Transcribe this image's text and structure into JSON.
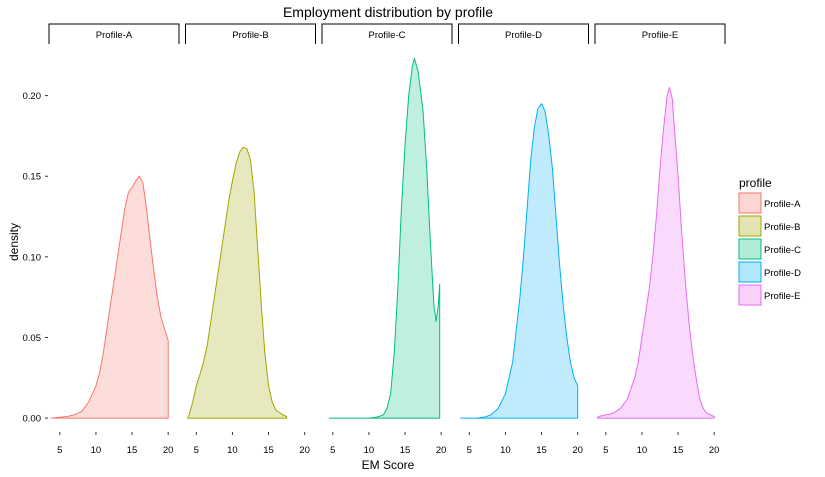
{
  "chart_data": {
    "type": "area",
    "title": "Employment distribution by profile",
    "xlabel": "EM Score",
    "ylabel": "density",
    "xlim": [
      3.5,
      21.5
    ],
    "ylim": [
      -0.008,
      0.232
    ],
    "x_ticks": [
      5,
      10,
      15,
      20
    ],
    "y_ticks": [
      0.0,
      0.05,
      0.1,
      0.15,
      0.2
    ],
    "y_tick_labels": [
      "0.00",
      "0.05",
      "0.10",
      "0.15",
      "0.20"
    ],
    "grid": false,
    "facet_by": "profile",
    "legend": {
      "title": "profile",
      "position": "right"
    },
    "series": [
      {
        "name": "Profile-A",
        "color": "#F8766D",
        "points": [
          [
            3.8,
            0.0
          ],
          [
            5,
            0.0005
          ],
          [
            6,
            0.001
          ],
          [
            7,
            0.002
          ],
          [
            8,
            0.004
          ],
          [
            9,
            0.01
          ],
          [
            10,
            0.02
          ],
          [
            10.5,
            0.028
          ],
          [
            11,
            0.04
          ],
          [
            11.5,
            0.055
          ],
          [
            12,
            0.07
          ],
          [
            12.5,
            0.085
          ],
          [
            13,
            0.1
          ],
          [
            13.5,
            0.115
          ],
          [
            14,
            0.13
          ],
          [
            14.5,
            0.14
          ],
          [
            15,
            0.143
          ],
          [
            15.5,
            0.147
          ],
          [
            16,
            0.15
          ],
          [
            16.5,
            0.146
          ],
          [
            17,
            0.13
          ],
          [
            17.5,
            0.11
          ],
          [
            18,
            0.092
          ],
          [
            18.5,
            0.075
          ],
          [
            19,
            0.063
          ],
          [
            19.5,
            0.055
          ],
          [
            20,
            0.048
          ],
          [
            20,
            0.0
          ]
        ]
      },
      {
        "name": "Profile-B",
        "color": "#A3A500",
        "points": [
          [
            3.8,
            0.0
          ],
          [
            4,
            0.002
          ],
          [
            4.5,
            0.01
          ],
          [
            5,
            0.02
          ],
          [
            5.5,
            0.027
          ],
          [
            6,
            0.035
          ],
          [
            6.5,
            0.045
          ],
          [
            7,
            0.06
          ],
          [
            7.5,
            0.075
          ],
          [
            8,
            0.09
          ],
          [
            8.5,
            0.105
          ],
          [
            9,
            0.12
          ],
          [
            9.5,
            0.135
          ],
          [
            10,
            0.147
          ],
          [
            10.5,
            0.158
          ],
          [
            11,
            0.165
          ],
          [
            11.5,
            0.168
          ],
          [
            12,
            0.167
          ],
          [
            12.5,
            0.16
          ],
          [
            13,
            0.14
          ],
          [
            13.5,
            0.105
          ],
          [
            14,
            0.07
          ],
          [
            14.5,
            0.04
          ],
          [
            15,
            0.02
          ],
          [
            15.5,
            0.01
          ],
          [
            16,
            0.005
          ],
          [
            17,
            0.002
          ],
          [
            17.5,
            0.001
          ],
          [
            17.5,
            0.0
          ]
        ]
      },
      {
        "name": "Profile-C",
        "color": "#00BF7D",
        "points": [
          [
            4.5,
            0.0
          ],
          [
            6,
            0.0
          ],
          [
            8,
            0.0
          ],
          [
            10,
            0.0
          ],
          [
            11,
            0.0005
          ],
          [
            12,
            0.002
          ],
          [
            12.5,
            0.006
          ],
          [
            13,
            0.015
          ],
          [
            13.5,
            0.04
          ],
          [
            14,
            0.08
          ],
          [
            14.5,
            0.13
          ],
          [
            15,
            0.17
          ],
          [
            15.5,
            0.2
          ],
          [
            16,
            0.218
          ],
          [
            16.3,
            0.223
          ],
          [
            16.8,
            0.215
          ],
          [
            17.5,
            0.19
          ],
          [
            18,
            0.155
          ],
          [
            18.5,
            0.11
          ],
          [
            19,
            0.07
          ],
          [
            19.3,
            0.06
          ],
          [
            19.6,
            0.07
          ],
          [
            19.8,
            0.083
          ],
          [
            19.8,
            0.0
          ]
        ]
      },
      {
        "name": "Profile-D",
        "color": "#00B0F6",
        "points": [
          [
            3.8,
            0.0
          ],
          [
            5,
            0.0
          ],
          [
            6,
            0.0
          ],
          [
            7,
            0.0005
          ],
          [
            8,
            0.002
          ],
          [
            9,
            0.006
          ],
          [
            10,
            0.015
          ],
          [
            11,
            0.035
          ],
          [
            12,
            0.075
          ],
          [
            12.5,
            0.1
          ],
          [
            13,
            0.13
          ],
          [
            13.5,
            0.16
          ],
          [
            14,
            0.18
          ],
          [
            14.5,
            0.192
          ],
          [
            15,
            0.195
          ],
          [
            15.5,
            0.19
          ],
          [
            16,
            0.175
          ],
          [
            16.5,
            0.155
          ],
          [
            17,
            0.125
          ],
          [
            17.5,
            0.095
          ],
          [
            18,
            0.07
          ],
          [
            18.5,
            0.05
          ],
          [
            19,
            0.035
          ],
          [
            19.5,
            0.025
          ],
          [
            20,
            0.02
          ],
          [
            20,
            0.0
          ]
        ]
      },
      {
        "name": "Profile-E",
        "color": "#E76BF3",
        "points": [
          [
            3.8,
            0.0
          ],
          [
            4,
            0.001
          ],
          [
            5,
            0.002
          ],
          [
            6,
            0.003
          ],
          [
            7,
            0.006
          ],
          [
            8,
            0.012
          ],
          [
            9,
            0.025
          ],
          [
            9.5,
            0.035
          ],
          [
            10,
            0.05
          ],
          [
            10.5,
            0.065
          ],
          [
            11,
            0.08
          ],
          [
            11.5,
            0.1
          ],
          [
            12,
            0.125
          ],
          [
            12.5,
            0.155
          ],
          [
            13,
            0.18
          ],
          [
            13.5,
            0.2
          ],
          [
            13.8,
            0.205
          ],
          [
            14.2,
            0.198
          ],
          [
            14.5,
            0.18
          ],
          [
            15,
            0.15
          ],
          [
            15.5,
            0.115
          ],
          [
            16,
            0.085
          ],
          [
            16.5,
            0.06
          ],
          [
            17,
            0.04
          ],
          [
            17.5,
            0.025
          ],
          [
            18,
            0.012
          ],
          [
            18.5,
            0.006
          ],
          [
            19,
            0.003
          ],
          [
            20,
            0.001
          ],
          [
            20,
            0.0
          ]
        ]
      }
    ]
  }
}
